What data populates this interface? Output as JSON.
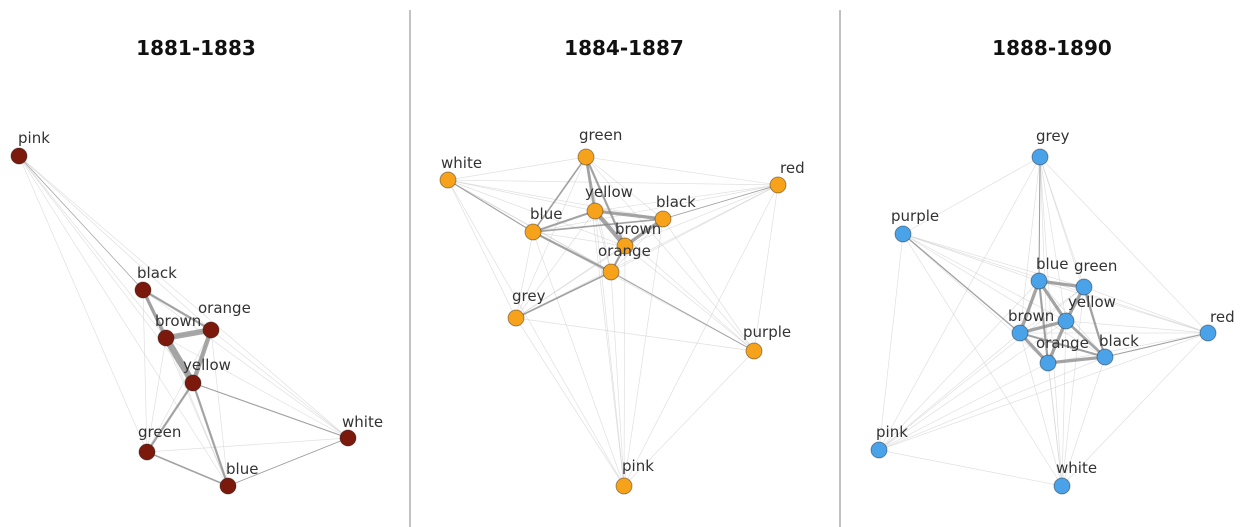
{
  "panels": [
    {
      "title": "1881-1883",
      "color": "#7b1a0c",
      "nodes": [
        "pink",
        "black",
        "brown",
        "orange",
        "yellow",
        "green",
        "blue",
        "white"
      ]
    },
    {
      "title": "1884-1887",
      "color": "#f7a21b",
      "nodes": [
        "white",
        "green",
        "red",
        "yellow",
        "black",
        "blue",
        "brown",
        "orange",
        "grey",
        "purple",
        "pink"
      ]
    },
    {
      "title": "1888-1890",
      "color": "#4aa3e8",
      "nodes": [
        "grey",
        "purple",
        "blue",
        "green",
        "yellow",
        "brown",
        "red",
        "orange",
        "black",
        "pink",
        "white"
      ]
    }
  ]
}
